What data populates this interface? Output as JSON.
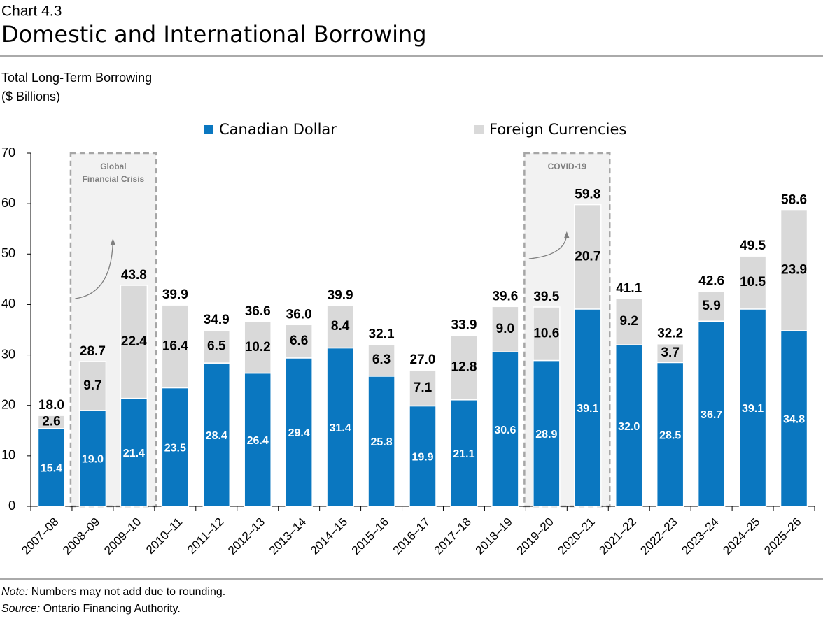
{
  "header": {
    "label": "Chart 4.3",
    "title": "Domestic and International Borrowing"
  },
  "chart_data": {
    "type": "stacked_bar",
    "subtitle": [
      "Total Long-Term Borrowing",
      "($ Billions)"
    ],
    "categories": [
      "2007–08",
      "2008–09",
      "2009–10",
      "2010–11",
      "2011–12",
      "2012–13",
      "2013–14",
      "2014–15",
      "2015–16",
      "2016–17",
      "2017–18",
      "2018–19",
      "2019–20",
      "2020–21",
      "2021–22",
      "2022–23",
      "2023–24",
      "2024–25",
      "2025–26"
    ],
    "series": [
      {
        "name": "Canadian Dollar",
        "color": "#0a77c0",
        "values": [
          15.4,
          19.0,
          21.4,
          23.5,
          28.4,
          26.4,
          29.4,
          31.4,
          25.8,
          19.9,
          21.1,
          30.6,
          28.9,
          39.1,
          32.0,
          28.5,
          36.7,
          39.1,
          34.8
        ],
        "value_labels": [
          "15.4",
          "19.0",
          "21.4",
          "23.5",
          "28.4",
          "26.4",
          "29.4",
          "31.4",
          "25.8",
          "19.9",
          "21.1",
          "30.6",
          "28.9",
          "39.1",
          "32.0",
          "28.5",
          "36.7",
          "39.1",
          "34.8"
        ]
      },
      {
        "name": "Foreign Currencies",
        "color": "#d9d9d9",
        "values": [
          2.6,
          9.7,
          22.4,
          16.4,
          6.5,
          10.2,
          6.6,
          8.4,
          6.3,
          7.1,
          12.8,
          9.0,
          10.6,
          20.7,
          9.2,
          3.7,
          5.9,
          10.5,
          23.9
        ],
        "value_labels": [
          "2.6",
          "9.7",
          "22.4",
          "16.4",
          "6.5",
          "10.2",
          "6.6",
          "8.4",
          "6.3",
          "7.1",
          "12.8",
          "9.0",
          "10.6",
          "20.7",
          "9.2",
          "3.7",
          "5.9",
          "10.5",
          "23.9"
        ]
      }
    ],
    "total_labels": [
      "18.0",
      "28.7",
      "43.8",
      "39.9",
      "34.9",
      "36.6",
      "36.0",
      "39.9",
      "32.1",
      "27.0",
      "33.9",
      "39.6",
      "39.5",
      "59.8",
      "41.1",
      "32.2",
      "42.6",
      "49.5",
      "58.6"
    ],
    "ylim": [
      0,
      70
    ],
    "yticks": [
      0,
      10,
      20,
      30,
      40,
      50,
      60,
      70
    ],
    "annotations": [
      {
        "label": "Global Financial Crisis",
        "from": "2008–09",
        "to": "2009–10"
      },
      {
        "label": "COVID-19",
        "from": "2019–20",
        "to": "2020–21"
      }
    ]
  },
  "footer": {
    "note_label": "Note:",
    "note": "Numbers may not add due to rounding.",
    "source_label": "Source:",
    "source": "Ontario Financing Authority."
  }
}
